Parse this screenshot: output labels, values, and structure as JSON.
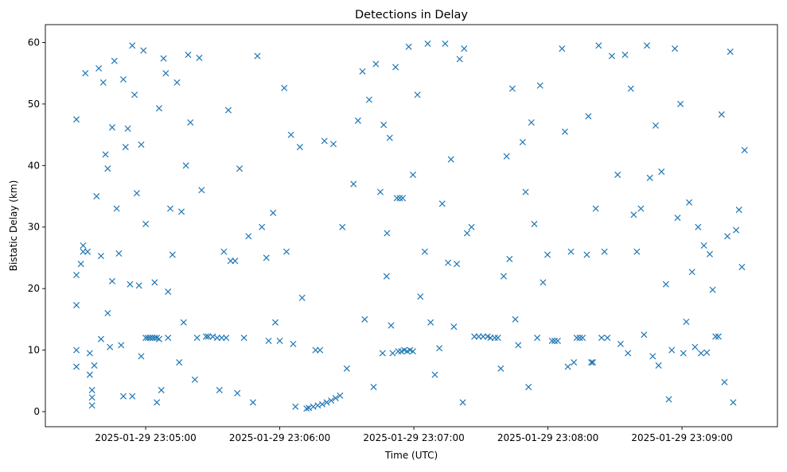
{
  "chart_data": {
    "type": "scatter",
    "title": "Detections in Delay",
    "xlabel": "Time (UTC)",
    "ylabel": "Bistatic Delay (km)",
    "x_reference": "2025-01-29 23:05:00",
    "x_units": "seconds offset from x_reference",
    "xlim": [
      -44.9,
      282.7
    ],
    "ylim": [
      -2.45,
      62.9
    ],
    "grid": false,
    "marker": "x",
    "color": "#1f77b4",
    "xticks": [
      {
        "value": 0,
        "label": "2025-01-29 23:05:00"
      },
      {
        "value": 60,
        "label": "2025-01-29 23:06:00"
      },
      {
        "value": 120,
        "label": "2025-01-29 23:07:00"
      },
      {
        "value": 180,
        "label": "2025-01-29 23:08:00"
      },
      {
        "value": 240,
        "label": "2025-01-29 23:09:00"
      }
    ],
    "yticks": [
      {
        "value": 0,
        "label": "0"
      },
      {
        "value": 10,
        "label": "10"
      },
      {
        "value": 20,
        "label": "20"
      },
      {
        "value": 30,
        "label": "30"
      },
      {
        "value": 40,
        "label": "40"
      },
      {
        "value": 50,
        "label": "50"
      },
      {
        "value": 60,
        "label": "60"
      }
    ],
    "points": [
      [
        -31,
        47.5
      ],
      [
        -31,
        22.2
      ],
      [
        -31,
        17.3
      ],
      [
        -31,
        10
      ],
      [
        -31,
        7.3
      ],
      [
        -29,
        24
      ],
      [
        -28,
        26
      ],
      [
        -28,
        27
      ],
      [
        -27,
        55
      ],
      [
        -26,
        26
      ],
      [
        -25,
        9.5
      ],
      [
        -25,
        6
      ],
      [
        -24,
        3.5
      ],
      [
        -24,
        1
      ],
      [
        -24,
        2.3
      ],
      [
        -23,
        7.5
      ],
      [
        -22,
        35
      ],
      [
        -21,
        55.8
      ],
      [
        -20,
        25.3
      ],
      [
        -20,
        11.8
      ],
      [
        -19,
        53.5
      ],
      [
        -18,
        41.8
      ],
      [
        -17,
        39.5
      ],
      [
        -17,
        16
      ],
      [
        -16,
        10.5
      ],
      [
        -15,
        46.2
      ],
      [
        -15,
        21.2
      ],
      [
        -14,
        57
      ],
      [
        -13,
        33
      ],
      [
        -12,
        25.7
      ],
      [
        -11,
        10.8
      ],
      [
        -10,
        54
      ],
      [
        -10,
        2.5
      ],
      [
        -9,
        43
      ],
      [
        -8,
        46
      ],
      [
        -7,
        20.7
      ],
      [
        -6,
        59.5
      ],
      [
        -6,
        2.5
      ],
      [
        -5,
        51.5
      ],
      [
        -4,
        35.5
      ],
      [
        -3,
        20.5
      ],
      [
        -2,
        43.4
      ],
      [
        -2,
        9
      ],
      [
        -1,
        58.7
      ],
      [
        0,
        30.5
      ],
      [
        0,
        12
      ],
      [
        1,
        12
      ],
      [
        2,
        12
      ],
      [
        3,
        12
      ],
      [
        4,
        12
      ],
      [
        5,
        12
      ],
      [
        6,
        11.8
      ],
      [
        4,
        21
      ],
      [
        5,
        1.5
      ],
      [
        6,
        49.3
      ],
      [
        7,
        3.5
      ],
      [
        8,
        57.4
      ],
      [
        9,
        55
      ],
      [
        10,
        12
      ],
      [
        10,
        19.5
      ],
      [
        11,
        33
      ],
      [
        12,
        25.5
      ],
      [
        14,
        53.5
      ],
      [
        15,
        8
      ],
      [
        16,
        32.5
      ],
      [
        17,
        14.5
      ],
      [
        18,
        40
      ],
      [
        19,
        58
      ],
      [
        20,
        47
      ],
      [
        22,
        5.2
      ],
      [
        23,
        12
      ],
      [
        24,
        57.5
      ],
      [
        25,
        36
      ],
      [
        27,
        12.2
      ],
      [
        28,
        12.2
      ],
      [
        30,
        12.2
      ],
      [
        32,
        12
      ],
      [
        34,
        12
      ],
      [
        36,
        12
      ],
      [
        33,
        3.5
      ],
      [
        35,
        26
      ],
      [
        37,
        49
      ],
      [
        38,
        24.5
      ],
      [
        40,
        24.5
      ],
      [
        41,
        3
      ],
      [
        42,
        39.5
      ],
      [
        44,
        12
      ],
      [
        46,
        28.5
      ],
      [
        48,
        1.5
      ],
      [
        50,
        57.8
      ],
      [
        52,
        30
      ],
      [
        54,
        25
      ],
      [
        55,
        11.5
      ],
      [
        57,
        32.3
      ],
      [
        58,
        14.5
      ],
      [
        60,
        11.5
      ],
      [
        62,
        52.6
      ],
      [
        63,
        26
      ],
      [
        65,
        45
      ],
      [
        66,
        11
      ],
      [
        67,
        0.8
      ],
      [
        69,
        43
      ],
      [
        70,
        18.5
      ],
      [
        72,
        0.5
      ],
      [
        73,
        0.6
      ],
      [
        75,
        0.8
      ],
      [
        77,
        1
      ],
      [
        79,
        1.2
      ],
      [
        81,
        1.5
      ],
      [
        83,
        1.8
      ],
      [
        85,
        2.2
      ],
      [
        87,
        2.6
      ],
      [
        76,
        10
      ],
      [
        78,
        10
      ],
      [
        80,
        44
      ],
      [
        84,
        43.5
      ],
      [
        88,
        30
      ],
      [
        90,
        7
      ],
      [
        93,
        37
      ],
      [
        95,
        47.3
      ],
      [
        97,
        55.3
      ],
      [
        98,
        15
      ],
      [
        100,
        50.7
      ],
      [
        102,
        4
      ],
      [
        103,
        56.5
      ],
      [
        105,
        35.7
      ],
      [
        106,
        9.5
      ],
      [
        108,
        29
      ],
      [
        106.5,
        46.6
      ],
      [
        107.8,
        22
      ],
      [
        109.8,
        14
      ],
      [
        111.8,
        56
      ],
      [
        113,
        9.8
      ],
      [
        114.4,
        9.8
      ],
      [
        115.7,
        10
      ],
      [
        117,
        9.8
      ],
      [
        118.3,
        10
      ],
      [
        119.6,
        9.8
      ],
      [
        109.2,
        44.5
      ],
      [
        110.5,
        9.5
      ],
      [
        112.4,
        34.7
      ],
      [
        113.7,
        34.7
      ],
      [
        115,
        34.7
      ],
      [
        117.7,
        59.3
      ],
      [
        119.6,
        38.5
      ],
      [
        121.6,
        51.5
      ],
      [
        122.9,
        18.7
      ],
      [
        124.9,
        26
      ],
      [
        126.2,
        59.8
      ],
      [
        127.5,
        14.5
      ],
      [
        129.4,
        6
      ],
      [
        131.4,
        10.3
      ],
      [
        132.7,
        33.8
      ],
      [
        134,
        59.8
      ],
      [
        135.3,
        24.2
      ],
      [
        136.6,
        41
      ],
      [
        137.9,
        13.8
      ],
      [
        139.2,
        24
      ],
      [
        140.5,
        57.3
      ],
      [
        141.9,
        1.5
      ],
      [
        142.5,
        59
      ],
      [
        143.8,
        29
      ],
      [
        145.8,
        30
      ],
      [
        147.1,
        12.2
      ],
      [
        149,
        12.2
      ],
      [
        151,
        12.2
      ],
      [
        153,
        12.2
      ],
      [
        154.3,
        12
      ],
      [
        156.2,
        12
      ],
      [
        157.6,
        12
      ],
      [
        158.9,
        7
      ],
      [
        160.2,
        22
      ],
      [
        161.5,
        41.5
      ],
      [
        162.8,
        24.8
      ],
      [
        164.1,
        52.5
      ],
      [
        165.4,
        15
      ],
      [
        166.7,
        10.8
      ],
      [
        168.7,
        43.8
      ],
      [
        170,
        35.7
      ],
      [
        171.3,
        4
      ],
      [
        172.6,
        47
      ],
      [
        173.9,
        30.5
      ],
      [
        175.2,
        12
      ],
      [
        176.5,
        53
      ],
      [
        177.8,
        21
      ],
      [
        179.8,
        25.5
      ],
      [
        181.8,
        11.5
      ],
      [
        183,
        11.5
      ],
      [
        184.4,
        11.5
      ],
      [
        186.3,
        59
      ],
      [
        187.6,
        45.5
      ],
      [
        188.9,
        7.3
      ],
      [
        190.3,
        26
      ],
      [
        191.6,
        8
      ],
      [
        192.9,
        12
      ],
      [
        194.2,
        12
      ],
      [
        195.5,
        12
      ],
      [
        197.4,
        25.5
      ],
      [
        198.1,
        48
      ],
      [
        199.4,
        8
      ],
      [
        200.1,
        8
      ],
      [
        201.4,
        33
      ],
      [
        202.7,
        59.5
      ],
      [
        204,
        12
      ],
      [
        205.3,
        26
      ],
      [
        206.6,
        12
      ],
      [
        208.6,
        57.8
      ],
      [
        211.2,
        38.5
      ],
      [
        212.5,
        11
      ],
      [
        214.5,
        58
      ],
      [
        215.8,
        9.5
      ],
      [
        217.1,
        52.5
      ],
      [
        218.4,
        32
      ],
      [
        219.8,
        26
      ],
      [
        221.6,
        33
      ],
      [
        223,
        12.5
      ],
      [
        224.3,
        59.5
      ],
      [
        225.6,
        38
      ],
      [
        226.9,
        9
      ],
      [
        228.2,
        46.5
      ],
      [
        229.5,
        7.5
      ],
      [
        230.8,
        39
      ],
      [
        232.8,
        20.7
      ],
      [
        234.1,
        2
      ],
      [
        235.4,
        10
      ],
      [
        236.8,
        59
      ],
      [
        238,
        31.5
      ],
      [
        239.3,
        50
      ],
      [
        240.6,
        9.5
      ],
      [
        241.9,
        14.6
      ],
      [
        243.2,
        34
      ],
      [
        244.5,
        22.7
      ],
      [
        245.8,
        10.5
      ],
      [
        247.2,
        30
      ],
      [
        248.5,
        9.5
      ],
      [
        249.8,
        27
      ],
      [
        251.1,
        9.6
      ],
      [
        252.4,
        25.6
      ],
      [
        253.7,
        19.8
      ],
      [
        255,
        12.2
      ],
      [
        256.3,
        12.2
      ],
      [
        257.7,
        48.3
      ],
      [
        259,
        4.8
      ],
      [
        260.3,
        28.5
      ],
      [
        261.6,
        58.5
      ],
      [
        262.9,
        1.5
      ],
      [
        264.2,
        29.5
      ],
      [
        265.5,
        32.8
      ],
      [
        266.8,
        23.5
      ],
      [
        268,
        42.5
      ]
    ]
  }
}
